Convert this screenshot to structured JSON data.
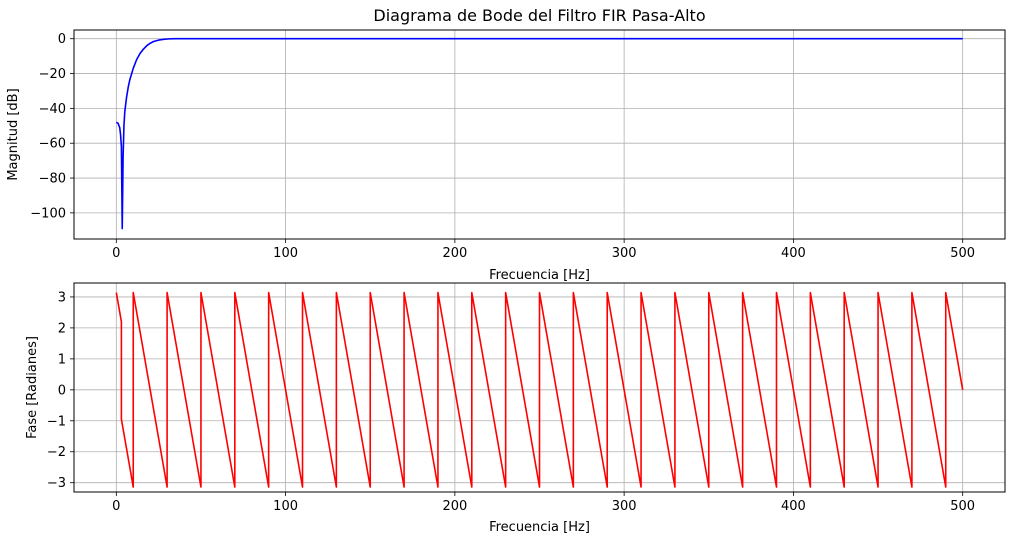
{
  "chart_data": [
    {
      "type": "line",
      "title": "Diagrama de Bode del Filtro FIR Pasa-Alto",
      "xlabel": "Frecuencia [Hz]",
      "ylabel": "Magnitud [dB]",
      "xlim": [
        -25,
        525
      ],
      "ylim": [
        -115,
        5
      ],
      "xticks": [
        0,
        100,
        200,
        300,
        400,
        500
      ],
      "yticks": [
        0,
        -20,
        -40,
        -60,
        -80,
        -100
      ],
      "xtick_labels": [
        "0",
        "100",
        "200",
        "300",
        "400",
        "500"
      ],
      "ytick_labels": [
        "0",
        "−20",
        "−40",
        "−60",
        "−80",
        "−100"
      ],
      "grid": true,
      "series": [
        {
          "color": "#0000ff",
          "x": [
            0,
            1,
            2,
            2.5,
            3,
            3.5,
            4,
            4.5,
            5,
            6,
            7,
            8,
            10,
            12,
            14,
            16,
            18,
            20,
            22,
            25,
            28,
            31,
            35,
            40,
            50,
            100,
            200,
            300,
            400,
            500
          ],
          "y": [
            -48,
            -48.5,
            -51,
            -55,
            -62,
            -109,
            -68,
            -50,
            -42,
            -34,
            -28,
            -23.5,
            -17,
            -12,
            -8.5,
            -6,
            -4,
            -2.6,
            -1.6,
            -0.8,
            -0.35,
            -0.1,
            0,
            0,
            0,
            0,
            0,
            0,
            0,
            0
          ]
        }
      ]
    },
    {
      "type": "line",
      "title": "",
      "xlabel": "Frecuencia [Hz]",
      "ylabel": "Fase [Radianes]",
      "xlim": [
        -25,
        525
      ],
      "ylim": [
        -3.3,
        3.45
      ],
      "xticks": [
        0,
        100,
        200,
        300,
        400,
        500
      ],
      "yticks": [
        3,
        2,
        1,
        0,
        -1,
        -2,
        -3
      ],
      "xtick_labels": [
        "0",
        "100",
        "200",
        "300",
        "400",
        "500"
      ],
      "ytick_labels": [
        "3",
        "2",
        "1",
        "0",
        "−1",
        "−2",
        "−3"
      ],
      "grid": true,
      "series": [
        {
          "color": "#ff0000",
          "x": [
            0,
            3,
            3,
            10,
            10,
            30,
            30,
            50,
            50,
            70,
            70,
            90,
            90,
            110,
            110,
            130,
            130,
            150,
            150,
            170,
            170,
            190,
            190,
            210,
            210,
            230,
            230,
            250,
            250,
            270,
            270,
            290,
            290,
            310,
            310,
            330,
            330,
            350,
            350,
            370,
            370,
            390,
            390,
            410,
            410,
            430,
            430,
            450,
            450,
            470,
            470,
            490,
            490,
            500
          ],
          "y": [
            3.14,
            2.2,
            -0.95,
            -3.14,
            3.14,
            -3.14,
            3.14,
            -3.14,
            3.14,
            -3.14,
            3.14,
            -3.14,
            3.14,
            -3.14,
            3.14,
            -3.14,
            3.14,
            -3.14,
            3.14,
            -3.14,
            3.14,
            -3.14,
            3.14,
            -3.14,
            3.14,
            -3.14,
            3.14,
            -3.14,
            3.14,
            -3.14,
            3.14,
            -3.14,
            3.14,
            -3.14,
            3.14,
            -3.14,
            3.14,
            -3.14,
            3.14,
            -3.14,
            3.14,
            -3.14,
            3.14,
            -3.14,
            3.14,
            -3.14,
            3.14,
            -3.14,
            3.14,
            -3.14,
            3.14,
            -3.14,
            3.14,
            0
          ]
        }
      ]
    }
  ]
}
